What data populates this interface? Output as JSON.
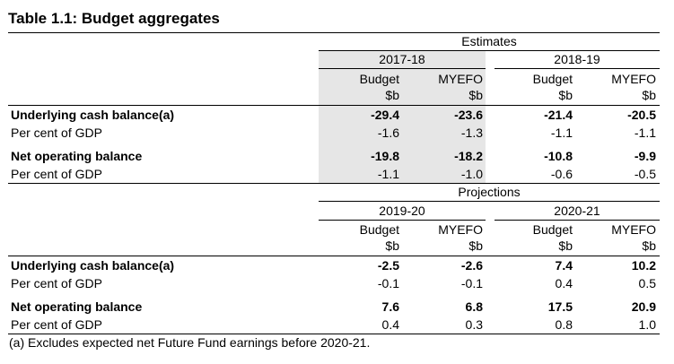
{
  "title": "Table 1.1: Budget aggregates",
  "sections": [
    {
      "group_label": "Estimates",
      "years": [
        "2017-18",
        "2018-19"
      ],
      "rows": [
        {
          "label": "Underlying cash balance(a)",
          "bold": true,
          "values": [
            "-29.4",
            "-23.6",
            "-21.4",
            "-20.5"
          ]
        },
        {
          "label": "Per cent of GDP",
          "bold": false,
          "values": [
            "-1.6",
            "-1.3",
            "-1.1",
            "-1.1"
          ]
        },
        {
          "label": "Net operating balance",
          "bold": true,
          "values": [
            "-19.8",
            "-18.2",
            "-10.8",
            "-9.9"
          ]
        },
        {
          "label": "Per cent of GDP",
          "bold": false,
          "values": [
            "-1.1",
            "-1.0",
            "-0.6",
            "-0.5"
          ]
        }
      ]
    },
    {
      "group_label": "Projections",
      "years": [
        "2019-20",
        "2020-21"
      ],
      "rows": [
        {
          "label": "Underlying cash balance(a)",
          "bold": true,
          "values": [
            "-2.5",
            "-2.6",
            "7.4",
            "10.2"
          ]
        },
        {
          "label": "Per cent of GDP",
          "bold": false,
          "values": [
            "-0.1",
            "-0.1",
            "0.4",
            "0.5"
          ]
        },
        {
          "label": "Net operating balance",
          "bold": true,
          "values": [
            "7.6",
            "6.8",
            "17.5",
            "20.9"
          ]
        },
        {
          "label": "Per cent of GDP",
          "bold": false,
          "values": [
            "0.4",
            "0.3",
            "0.8",
            "1.0"
          ]
        }
      ]
    }
  ],
  "column_headers": [
    "Budget",
    "MYEFO",
    "Budget",
    "MYEFO"
  ],
  "units": [
    "$b",
    "$b",
    "$b",
    "$b"
  ],
  "footnote": "(a) Excludes expected net Future Fund earnings before 2020-21.",
  "colors": {
    "shade": "#e6e6e6",
    "rule": "#000000"
  }
}
